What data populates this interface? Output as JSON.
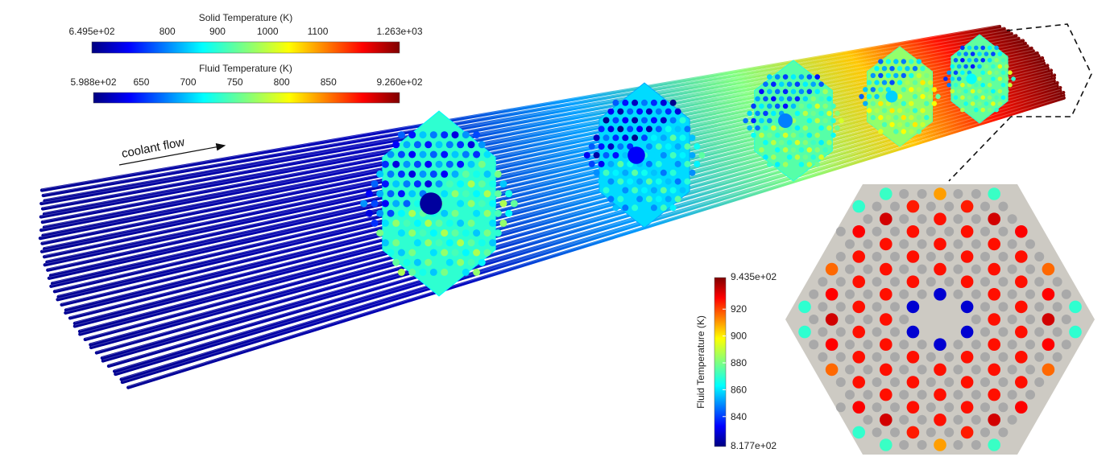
{
  "solid_colorbar": {
    "title": "Solid Temperature (K)",
    "min_label": "6.495e+02",
    "max_label": "1.263e+03",
    "min": 649.5,
    "max": 1263,
    "ticks": [
      {
        "value": 800,
        "label": "800"
      },
      {
        "value": 900,
        "label": "900"
      },
      {
        "value": 1000,
        "label": "1000"
      },
      {
        "value": 1100,
        "label": "1100"
      }
    ]
  },
  "fluid_colorbar": {
    "title": "Fluid Temperature (K)",
    "min_label": "5.988e+02",
    "max_label": "9.260e+02",
    "min": 598.8,
    "max": 926,
    "ticks": [
      {
        "value": 650,
        "label": "650"
      },
      {
        "value": 700,
        "label": "700"
      },
      {
        "value": 750,
        "label": "750"
      },
      {
        "value": 800,
        "label": "800"
      },
      {
        "value": 850,
        "label": "850"
      }
    ]
  },
  "inset_colorbar": {
    "title": "Fluid Temperature (K)",
    "min_label": "8.177e+02",
    "max_label": "9.435e+02",
    "min": 817.7,
    "max": 943.5,
    "ticks": [
      {
        "value": 840,
        "label": "840"
      },
      {
        "value": 860,
        "label": "860"
      },
      {
        "value": 880,
        "label": "880"
      },
      {
        "value": 900,
        "label": "900"
      },
      {
        "value": 920,
        "label": "920"
      }
    ]
  },
  "annotation": {
    "coolant_flow": "coolant flow"
  },
  "colors": {
    "jet": [
      "#00007f",
      "#0000ff",
      "#007fff",
      "#00ffff",
      "#7fff7f",
      "#ffff00",
      "#ff7f00",
      "#ff0000",
      "#7f0000"
    ],
    "inset_background": "#cdcac3",
    "inset_unheated_pin": "#a9a9a9"
  }
}
